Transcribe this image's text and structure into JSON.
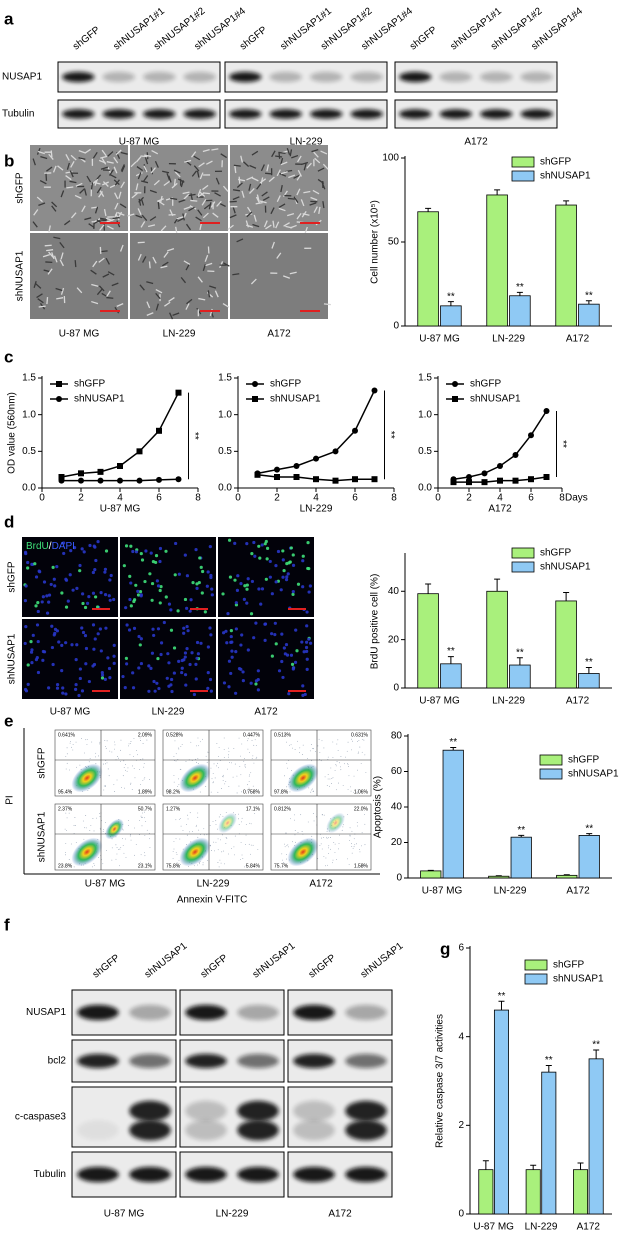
{
  "panel_labels": [
    "a",
    "b",
    "c",
    "d",
    "e",
    "f",
    "g"
  ],
  "blot_a": {
    "lanes": [
      "shGFP",
      "shNUSAP1#1",
      "shNUSAP1#2",
      "shNUSAP1#4"
    ],
    "rows": [
      "NUSAP1",
      "Tubulin"
    ],
    "cell_lines": [
      "U-87 MG",
      "LN-229",
      "A172"
    ]
  },
  "micro_b": {
    "rows": [
      "shGFP",
      "shNUSAP1"
    ],
    "cell_lines": [
      "U-87 MG",
      "LN-229",
      "A172"
    ]
  },
  "micro_d": {
    "stain": [
      "BrdU",
      "/",
      "DAPI"
    ],
    "rows": [
      "shGFP",
      "shNUSAP1"
    ],
    "cell_lines": [
      "U-87 MG",
      "LN-229",
      "A172"
    ]
  },
  "flow_e": {
    "x_label": "Annexin V-FITC",
    "y_label": "PI",
    "rows": [
      "shGFP",
      "shNUSAP1"
    ],
    "cell_lines": [
      "U-87 MG",
      "LN-229",
      "A172"
    ],
    "quadrants": [
      [
        [
          "0.641%",
          "2.09%",
          "95.4%",
          "1.89%"
        ],
        [
          "0.528%",
          "0.447%",
          "98.2%",
          "0.758%"
        ],
        [
          "0.513%",
          "0.631%",
          "97.8%",
          "1.06%"
        ]
      ],
      [
        [
          "2.37%",
          "50.7%",
          "23.8%",
          "23.1%"
        ],
        [
          "1.27%",
          "17.1%",
          "75.8%",
          "5.84%"
        ],
        [
          "0.812%",
          "22.0%",
          "75.7%",
          "1.58%"
        ]
      ]
    ]
  },
  "blot_f": {
    "lanes": [
      "shGFP",
      "shNUSAP1"
    ],
    "rows": [
      "NUSAP1",
      "bcl2",
      "c-caspase3",
      "Tubulin"
    ],
    "cell_lines": [
      "U-87 MG",
      "LN-229",
      "A172"
    ]
  },
  "chart_data": [
    {
      "type": "bar",
      "y_label": "Cell number (x10⁵)",
      "categories": [
        "U-87 MG",
        "LN-229",
        "A172"
      ],
      "ylim": [
        0,
        100
      ],
      "yticks": [
        0,
        50,
        100
      ],
      "series": [
        {
          "name": "shGFP",
          "color": "#a9f07c",
          "values": [
            68,
            78,
            72
          ],
          "errors": [
            2,
            3,
            2.5
          ]
        },
        {
          "name": "shNUSAP1",
          "color": "#8fc9f4",
          "values": [
            12,
            18,
            13
          ],
          "errors": [
            2.5,
            2,
            2
          ],
          "annotations": [
            "**",
            "**",
            "**"
          ]
        }
      ]
    },
    {
      "type": "line",
      "y_label": "OD value (560nm)",
      "x_label": "U-87 MG",
      "x": [
        1,
        2,
        3,
        4,
        5,
        6,
        7
      ],
      "xlim": [
        0,
        8
      ],
      "xticks": [
        0,
        2,
        4,
        6,
        8
      ],
      "ylim": [
        0,
        1.5
      ],
      "yticks": [
        {
          "value": 0,
          "label": "0.0"
        },
        0.5,
        {
          "value": 1,
          "label": "1.0"
        },
        1.5
      ],
      "annotation": "**",
      "series": [
        {
          "name": "shGFP",
          "color": "#000000",
          "marker": "square",
          "values": [
            0.15,
            0.2,
            0.22,
            0.3,
            0.5,
            0.78,
            1.3
          ]
        },
        {
          "name": "shNUSAP1",
          "color": "#000000",
          "marker": "circle",
          "values": [
            0.1,
            0.1,
            0.1,
            0.1,
            0.1,
            0.11,
            0.12
          ]
        }
      ]
    },
    {
      "type": "line",
      "x_label": "LN-229",
      "x": [
        1,
        2,
        3,
        4,
        5,
        6,
        7
      ],
      "xlim": [
        0,
        8
      ],
      "xticks": [
        0,
        2,
        4,
        6,
        8
      ],
      "ylim": [
        0,
        1.5
      ],
      "yticks": [
        {
          "value": 0,
          "label": "0.0"
        },
        0.5,
        {
          "value": 1,
          "label": "1.0"
        },
        1.5
      ],
      "annotation": "**",
      "series": [
        {
          "name": "shGFP",
          "color": "#000000",
          "marker": "circle",
          "values": [
            0.2,
            0.25,
            0.3,
            0.4,
            0.5,
            0.78,
            1.33
          ]
        },
        {
          "name": "shNUSAP1",
          "color": "#000000",
          "marker": "square",
          "values": [
            0.18,
            0.15,
            0.15,
            0.12,
            0.1,
            0.12,
            0.12
          ]
        }
      ]
    },
    {
      "type": "line",
      "x_label": "A172",
      "x_unit": "Days",
      "x": [
        1,
        2,
        3,
        4,
        5,
        6,
        7
      ],
      "xlim": [
        0,
        8
      ],
      "xticks": [
        0,
        2,
        4,
        6,
        8
      ],
      "ylim": [
        0,
        1.5
      ],
      "yticks": [
        {
          "value": 0,
          "label": "0.0"
        },
        0.5,
        {
          "value": 1,
          "label": "1.0"
        },
        1.5
      ],
      "annotation": "**",
      "series": [
        {
          "name": "shGFP",
          "color": "#000000",
          "marker": "circle",
          "values": [
            0.12,
            0.15,
            0.2,
            0.3,
            0.45,
            0.72,
            1.05
          ]
        },
        {
          "name": "shNUSAP1",
          "color": "#000000",
          "marker": "square",
          "values": [
            0.08,
            0.08,
            0.08,
            0.1,
            0.1,
            0.12,
            0.15
          ]
        }
      ]
    },
    {
      "type": "bar",
      "y_label": "BrdU positive cell (%)",
      "categories": [
        "U-87 MG",
        "LN-229",
        "A172"
      ],
      "ylim": [
        0,
        55
      ],
      "yticks": [
        0,
        20,
        40
      ],
      "series": [
        {
          "name": "shGFP",
          "color": "#a9f07c",
          "values": [
            39,
            40,
            36
          ],
          "errors": [
            4,
            5,
            3.5
          ]
        },
        {
          "name": "shNUSAP1",
          "color": "#8fc9f4",
          "values": [
            10,
            9.5,
            6
          ],
          "errors": [
            3,
            3,
            2.5
          ],
          "annotations": [
            "**",
            "**",
            "**"
          ]
        }
      ]
    },
    {
      "type": "bar",
      "y_label": "Apoptosis (%)",
      "categories": [
        "U-87 MG",
        "LN-229",
        "A172"
      ],
      "ylim": [
        0,
        80
      ],
      "yticks": [
        0,
        20,
        40,
        60,
        80
      ],
      "series": [
        {
          "name": "shGFP",
          "color": "#a9f07c",
          "values": [
            4,
            1,
            1.5
          ],
          "errors": [
            0.3,
            0.3,
            0.3
          ]
        },
        {
          "name": "shNUSAP1",
          "color": "#8fc9f4",
          "values": [
            72,
            23,
            24
          ],
          "errors": [
            1.5,
            1,
            1
          ],
          "annotations": [
            "**",
            "**",
            "**"
          ]
        }
      ]
    },
    {
      "type": "bar",
      "y_label": "Relative caspase 3/7 activities",
      "categories": [
        "U-87 MG",
        "LN-229",
        "A172"
      ],
      "ylim": [
        0,
        6
      ],
      "yticks": [
        0,
        2,
        4,
        6
      ],
      "series": [
        {
          "name": "shGFP",
          "color": "#a9f07c",
          "values": [
            1,
            1,
            1
          ],
          "errors": [
            0.2,
            0.1,
            0.15
          ]
        },
        {
          "name": "shNUSAP1",
          "color": "#8fc9f4",
          "values": [
            4.6,
            3.2,
            3.5
          ],
          "errors": [
            0.2,
            0.15,
            0.2
          ],
          "annotations": [
            "**",
            "**",
            "**"
          ]
        }
      ]
    }
  ]
}
